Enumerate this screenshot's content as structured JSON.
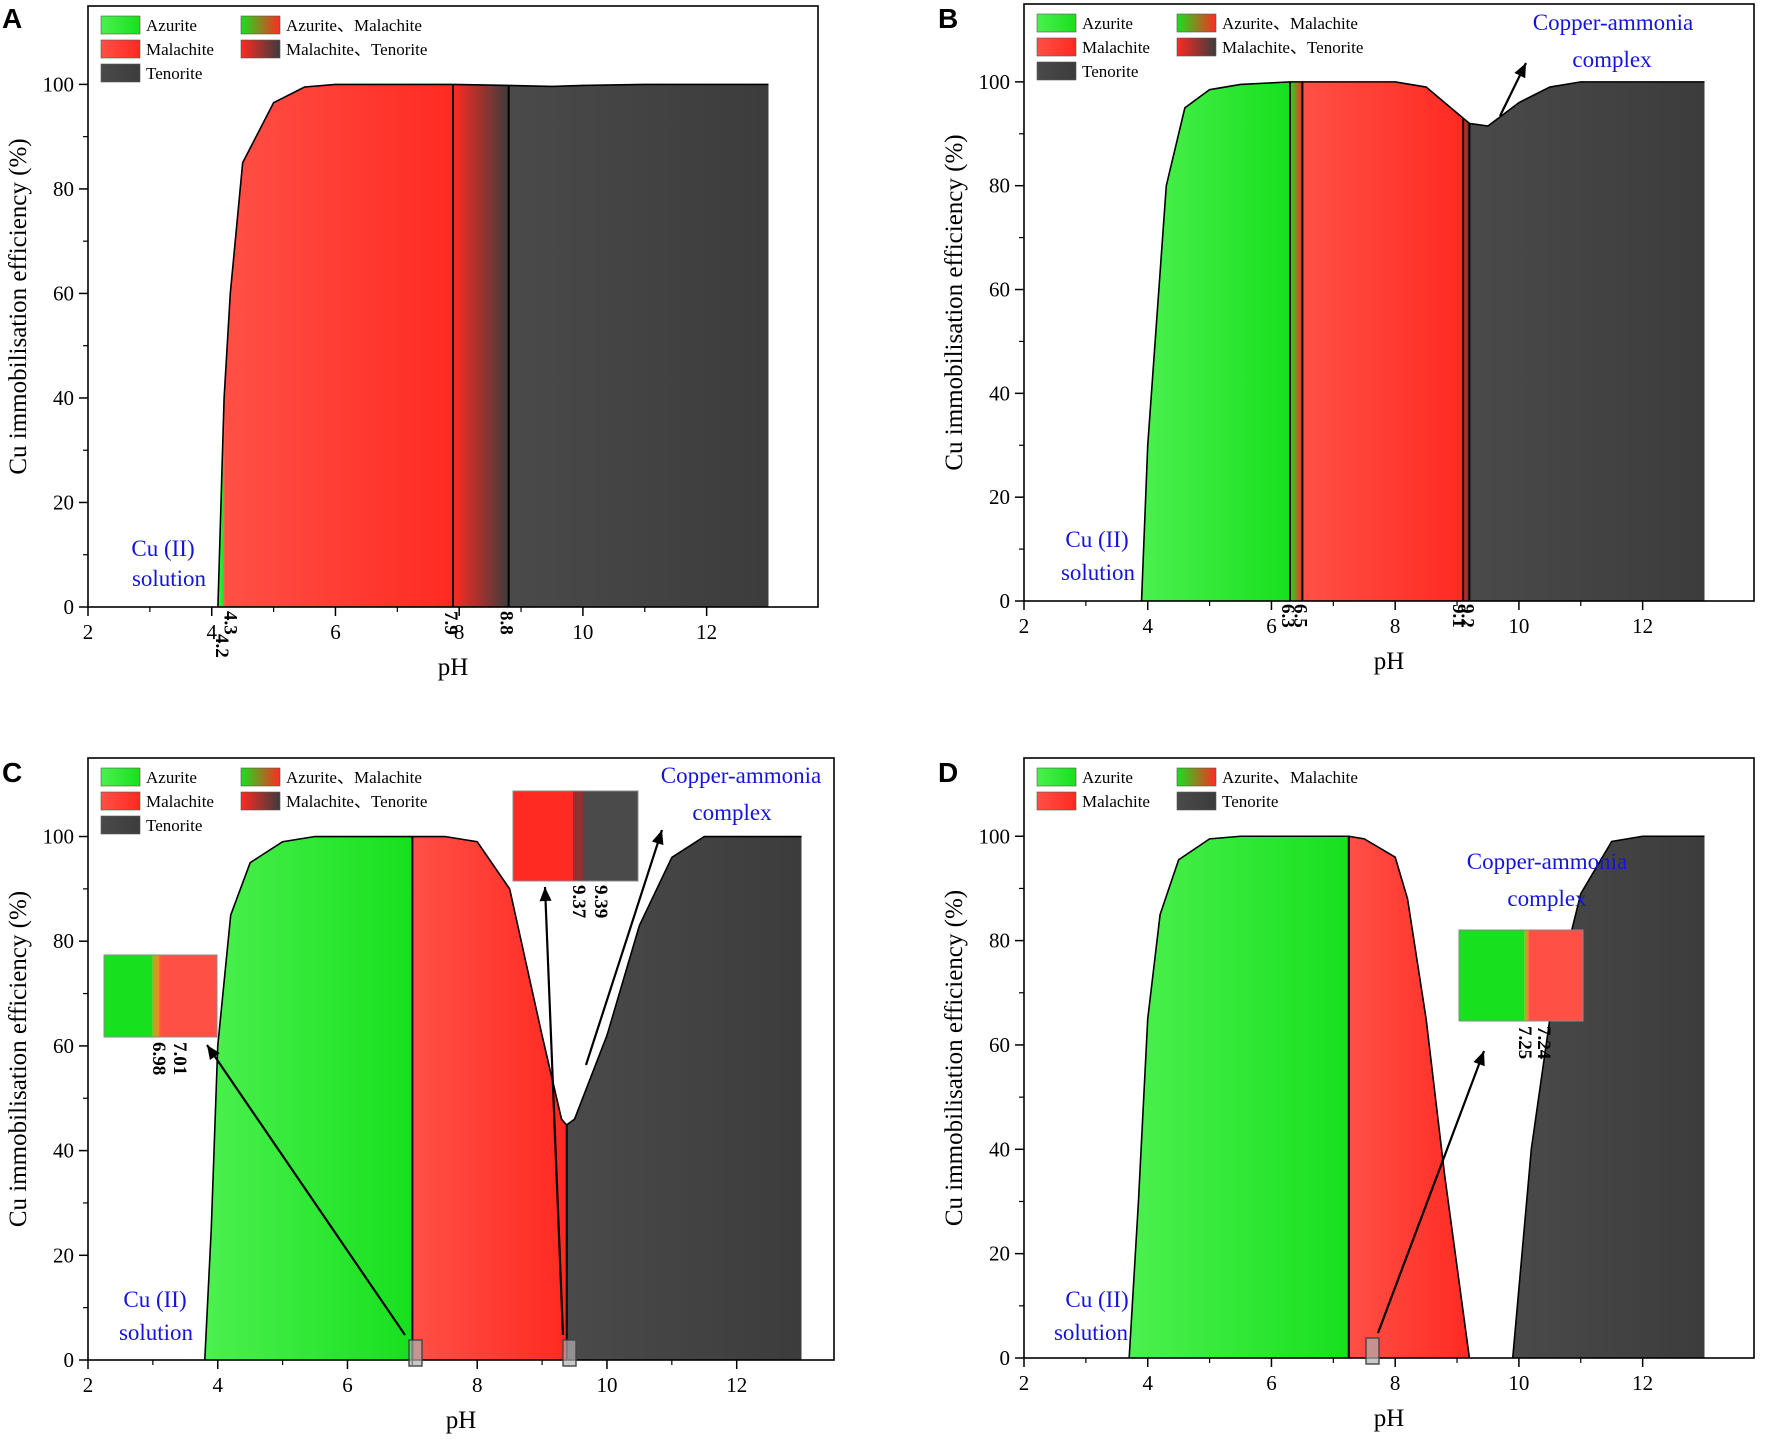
{
  "figure": {
    "y_axis_label": "Cu immobilisation efficiency (%)",
    "x_axis_label": "pH",
    "legend_labels": {
      "azurite": "Azurite",
      "malachite": "Malachite",
      "tenorite": "Tenorite",
      "azurite_malachite": "Azurite、Malachite",
      "malachite_tenorite": "Malachite、Tenorite"
    },
    "colors": {
      "azurite": "#17e01e",
      "azurite_light": "#4cf04f",
      "malachite": "#ff2a22",
      "malachite_light": "#ff5046",
      "tenorite": "#3c3c3c",
      "tenorite_light": "#4a4a4a",
      "annotation_blue": "#1414dc",
      "outline": "#000000"
    }
  },
  "chart_data": [
    {
      "panel": "A",
      "type": "area",
      "xlabel": "pH",
      "ylabel": "Cu immobilisation efficiency (%)",
      "xlim": [
        2,
        13.8
      ],
      "ylim": [
        0,
        115
      ],
      "xticks": [
        2,
        4,
        6,
        8,
        10,
        12
      ],
      "yticks": [
        0,
        20,
        40,
        60,
        80,
        100
      ],
      "legend": [
        "Azurite",
        "Malachite",
        "Tenorite",
        "Azurite、Malachite",
        "Malachite、Tenorite"
      ],
      "curve": {
        "x": [
          4.1,
          4.2,
          4.3,
          4.5,
          5,
          5.5,
          6,
          7,
          7.9,
          8.8,
          9.5,
          10,
          11,
          12,
          13
        ],
        "y": [
          0,
          40,
          60,
          85,
          96.5,
          99.5,
          100,
          100,
          100,
          99.8,
          99.6,
          99.8,
          100,
          100,
          100
        ]
      },
      "regions": [
        {
          "phase": "Azurite",
          "from": 4.1,
          "to": 4.2
        },
        {
          "phase": "Malachite",
          "from": 4.2,
          "to": 7.9
        },
        {
          "phase": "Malachite、Tenorite",
          "from": 7.9,
          "to": 8.8
        },
        {
          "phase": "Tenorite",
          "from": 8.8,
          "to": 13
        }
      ],
      "boundary_lines": [
        7.9,
        8.8
      ],
      "boundary_labels": [
        "4.3",
        "4.2",
        "7.9",
        "8.8"
      ],
      "annotations": [
        "Cu (II)",
        "solution"
      ]
    },
    {
      "panel": "B",
      "type": "area",
      "xlabel": "pH",
      "ylabel": "Cu immobilisation efficiency (%)",
      "xlim": [
        2,
        13.8
      ],
      "ylim": [
        0,
        115
      ],
      "xticks": [
        2,
        4,
        6,
        8,
        10,
        12
      ],
      "yticks": [
        0,
        20,
        40,
        60,
        80,
        100
      ],
      "legend": [
        "Azurite",
        "Malachite",
        "Tenorite",
        "Azurite、Malachite",
        "Malachite、Tenorite"
      ],
      "curve": {
        "x": [
          3.9,
          4.0,
          4.3,
          4.6,
          5,
          5.5,
          6.3,
          6.5,
          7.5,
          8,
          8.5,
          9.1,
          9.2,
          9.5,
          10,
          10.5,
          11,
          12,
          13
        ],
        "y": [
          0,
          30,
          80,
          95,
          98.5,
          99.5,
          100,
          100,
          100,
          100,
          99,
          93,
          92,
          91.5,
          96,
          99,
          100,
          100,
          100
        ]
      },
      "regions": [
        {
          "phase": "Azurite",
          "from": 3.9,
          "to": 6.3
        },
        {
          "phase": "Azurite、Malachite",
          "from": 6.3,
          "to": 6.5
        },
        {
          "phase": "Malachite",
          "from": 6.5,
          "to": 9.1
        },
        {
          "phase": "Malachite、Tenorite",
          "from": 9.1,
          "to": 9.2
        },
        {
          "phase": "Tenorite",
          "from": 9.2,
          "to": 13
        }
      ],
      "boundary_lines": [
        6.3,
        6.5,
        9.1,
        9.2
      ],
      "boundary_labels": [
        "6.3",
        "6.5",
        "9.1",
        "9.2"
      ],
      "annotations": [
        "Cu (II)",
        "solution",
        "Copper-ammonia",
        "complex"
      ]
    },
    {
      "panel": "C",
      "type": "area",
      "xlabel": "pH",
      "ylabel": "Cu immobilisation efficiency (%)",
      "xlim": [
        2,
        13.5
      ],
      "ylim": [
        0,
        115
      ],
      "xticks": [
        2,
        4,
        6,
        8,
        10,
        12
      ],
      "yticks": [
        0,
        20,
        40,
        60,
        80,
        100
      ],
      "legend": [
        "Azurite",
        "Malachite",
        "Tenorite",
        "Azurite、Malachite",
        "Malachite、Tenorite"
      ],
      "curve": {
        "x": [
          3.8,
          3.9,
          4.0,
          4.2,
          4.5,
          5,
          5.5,
          6,
          6.98,
          7.01,
          7.5,
          8,
          8.5,
          9,
          9.3,
          9.37,
          9.39,
          9.5,
          10,
          10.5,
          11,
          11.5,
          12,
          13
        ],
        "y": [
          0,
          25,
          60,
          85,
          95,
          99,
          100,
          100,
          100,
          100,
          100,
          99,
          90,
          62,
          46,
          45,
          45,
          46,
          62,
          83,
          96,
          100,
          100,
          100
        ]
      },
      "regions": [
        {
          "phase": "Azurite",
          "from": 3.8,
          "to": 6.98
        },
        {
          "phase": "Azurite、Malachite",
          "from": 6.98,
          "to": 7.01
        },
        {
          "phase": "Malachite",
          "from": 7.01,
          "to": 9.37
        },
        {
          "phase": "Malachite、Tenorite",
          "from": 9.37,
          "to": 9.39
        },
        {
          "phase": "Tenorite",
          "from": 9.39,
          "to": 13
        }
      ],
      "boundary_lines": [
        7.0,
        9.38
      ],
      "boundary_labels": [
        "6.98",
        "7.01",
        "9.37",
        "9.39"
      ],
      "annotations": [
        "Cu (II)",
        "solution",
        "Copper-ammonia",
        "complex"
      ]
    },
    {
      "panel": "D",
      "type": "area",
      "xlabel": "pH",
      "ylabel": "Cu immobilisation efficiency (%)",
      "xlim": [
        2,
        13.8
      ],
      "ylim": [
        0,
        115
      ],
      "xticks": [
        2,
        4,
        6,
        8,
        10,
        12
      ],
      "yticks": [
        0,
        20,
        40,
        60,
        80,
        100
      ],
      "legend": [
        "Azurite",
        "Malachite",
        "Azurite、Malachite",
        "Tenorite"
      ],
      "curve_segments": [
        {
          "x": [
            3.7,
            3.85,
            4.0,
            4.2,
            4.5,
            5,
            5.5,
            6,
            7.24,
            7.25,
            7.5,
            8,
            8.2,
            8.5,
            8.8,
            9.2
          ],
          "y": [
            0,
            30,
            65,
            85,
            95.5,
            99.5,
            100,
            100,
            100,
            100,
            99.5,
            96,
            88,
            65,
            35,
            0
          ]
        },
        {
          "x": [
            9.9,
            10.2,
            10.5,
            11,
            11.5,
            12,
            13
          ],
          "y": [
            0,
            40,
            65,
            89,
            99,
            100,
            100
          ]
        }
      ],
      "regions": [
        {
          "phase": "Azurite",
          "from": 3.7,
          "to": 7.24
        },
        {
          "phase": "Azurite、Malachite",
          "from": 7.24,
          "to": 7.25
        },
        {
          "phase": "Malachite",
          "from": 7.25,
          "to": 9.2
        },
        {
          "phase": "Tenorite",
          "from": 9.9,
          "to": 13
        }
      ],
      "boundary_lines": [
        7.25
      ],
      "boundary_labels": [
        "7.24",
        "7.25"
      ],
      "annotations": [
        "Cu (II)",
        "solution",
        "Copper-ammonia",
        "complex"
      ]
    }
  ]
}
